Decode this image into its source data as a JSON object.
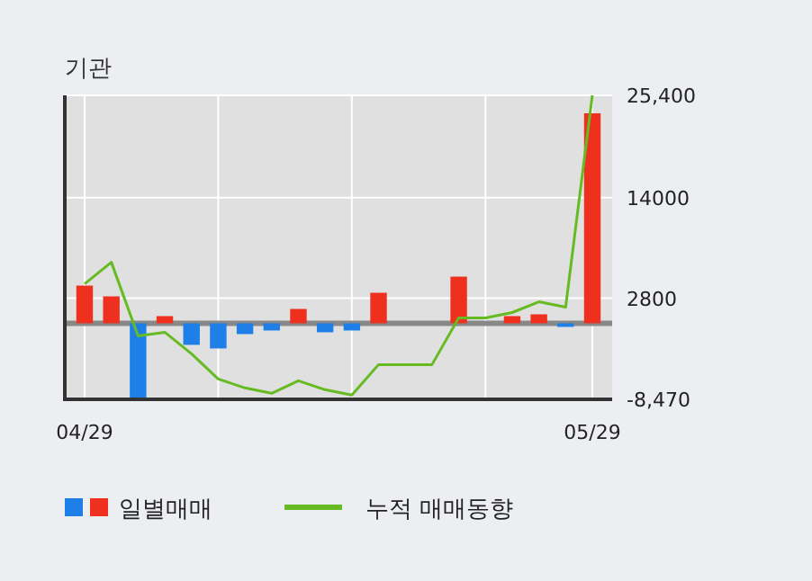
{
  "chart_data": {
    "type": "bar",
    "title": "기관",
    "categories": [
      "04/29",
      null,
      null,
      null,
      null,
      null,
      null,
      null,
      null,
      null,
      null,
      null,
      null,
      null,
      null,
      null,
      null,
      null,
      null,
      "05/29"
    ],
    "series": [
      {
        "name": "일별매매",
        "colors": [
          "#f0301e",
          "#f0301e",
          "#1f7fe8",
          "#f0301e",
          "#1f7fe8",
          "#1f7fe8",
          "#1f7fe8",
          "#1f7fe8",
          "#f0301e",
          "#1f7fe8",
          "#1f7fe8",
          "#f0301e",
          "#f0301e",
          "#f0301e",
          "#f0301e",
          "#f0301e",
          "#f0301e",
          "#f0301e",
          "#1f7fe8",
          "#f0301e"
        ],
        "values": [
          4200,
          3000,
          -8400,
          800,
          -2400,
          -2800,
          -1200,
          -800,
          1600,
          -1000,
          -800,
          3400,
          0,
          0,
          5200,
          0,
          800,
          1000,
          -400,
          23400
        ]
      },
      {
        "name": "누적 매매동향",
        "type": "line",
        "color": "#66bb22",
        "values": [
          4400,
          6800,
          -1400,
          -1000,
          -3400,
          -6200,
          -7200,
          -7800,
          -6400,
          -7400,
          -8000,
          -4600,
          -4600,
          -4600,
          600,
          600,
          1200,
          2400,
          1800,
          25400
        ]
      }
    ],
    "ylim": [
      -8470,
      25400
    ],
    "yticks": [
      {
        "value": 25400,
        "label": "25,400"
      },
      14000,
      2800,
      {
        "value": -8470,
        "label": "-8,470"
      }
    ],
    "ref_lines": [
      {
        "axis": "y",
        "value": 0,
        "color": "#888888"
      }
    ],
    "grid": true,
    "legend": "bottom"
  }
}
